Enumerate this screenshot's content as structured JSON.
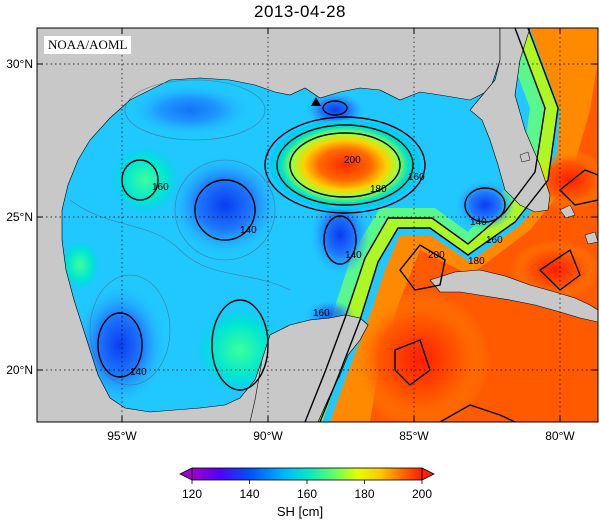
{
  "title": "2013-04-28",
  "credit": "NOAA/AOML",
  "lat_labels": [
    "30°N",
    "25°N",
    "20°N"
  ],
  "lon_labels": [
    "95°W",
    "90°W",
    "85°W",
    "80°W"
  ],
  "contour_labels": [
    "200",
    "180",
    "160",
    "160",
    "140",
    "140",
    "140",
    "140",
    "160",
    "180",
    "200",
    "160"
  ],
  "colorbar": {
    "ticks": [
      "120",
      "140",
      "160",
      "180",
      "200"
    ],
    "title": "SH [cm]",
    "colors": [
      "#a000c8",
      "#3c00ff",
      "#0050ff",
      "#00b4ff",
      "#00e6c8",
      "#64ff64",
      "#e6ff00",
      "#ffc800",
      "#ff6400",
      "#ff1e00"
    ]
  },
  "colors": {
    "land": "#c8c8c8",
    "frame": "#000000"
  },
  "marker": "triangle-marker"
}
